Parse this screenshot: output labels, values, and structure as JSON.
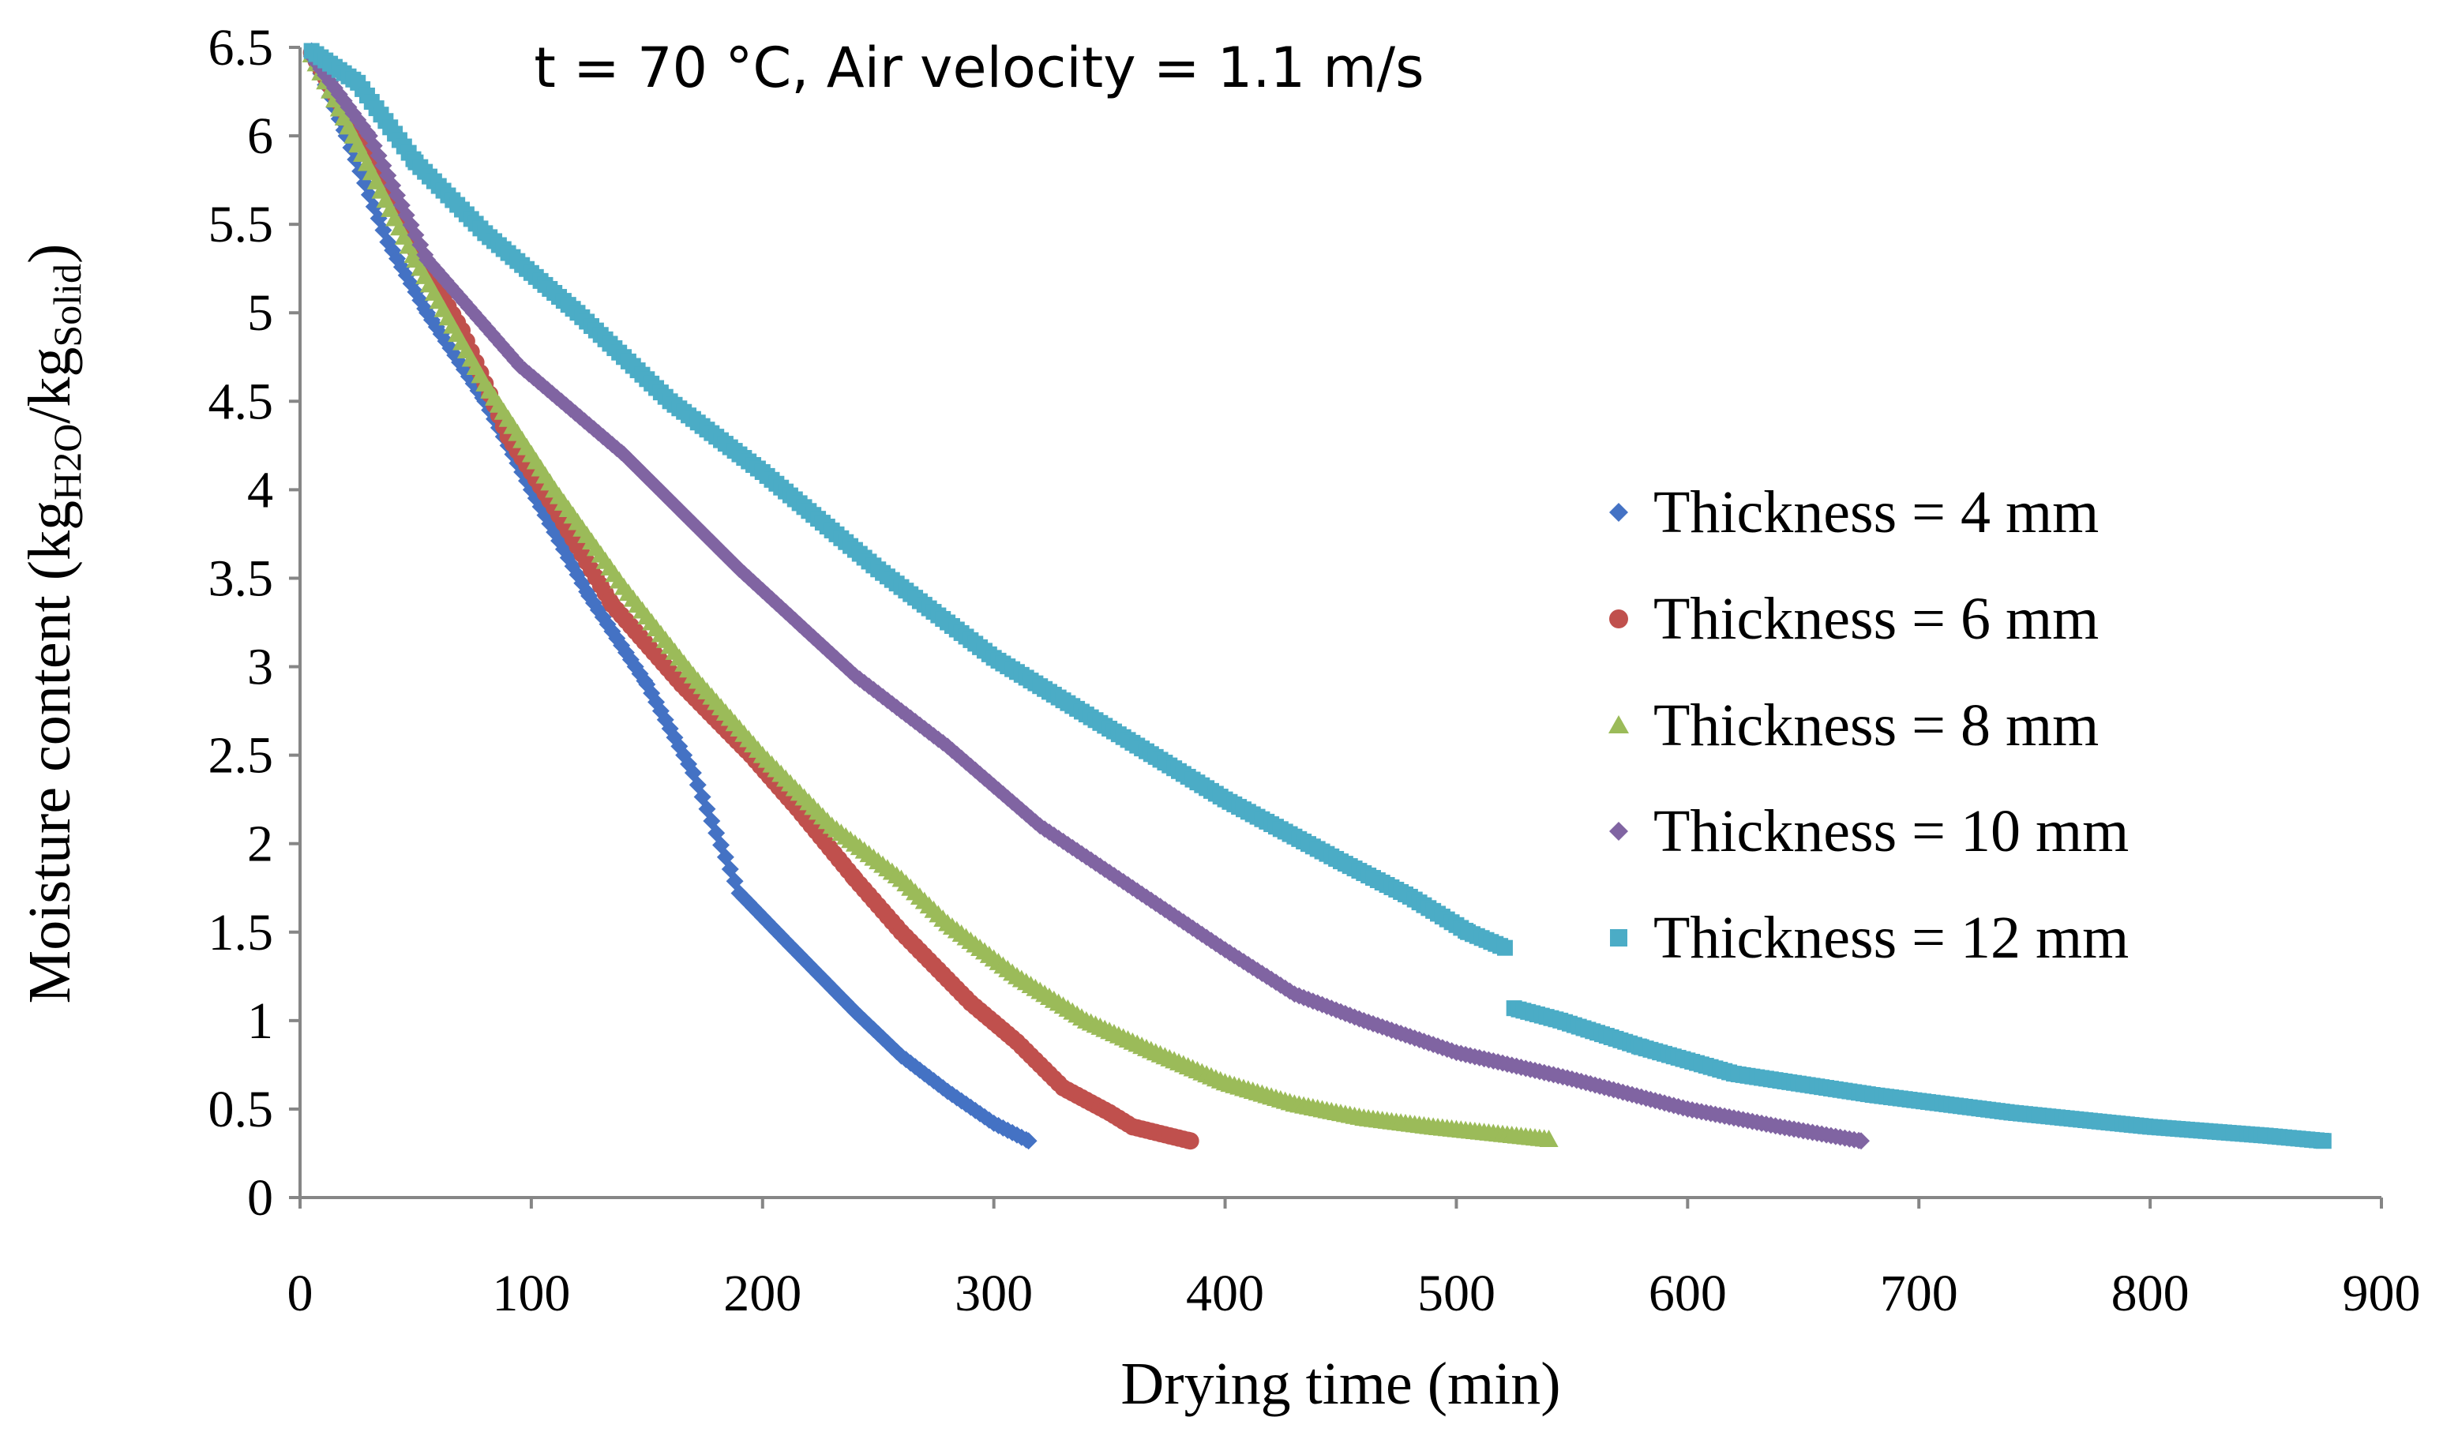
{
  "chart_data": {
    "type": "scatter",
    "title": "t = 70 °C, Air velocity = 1.1 m/s",
    "xlabel": "Drying time (min)",
    "ylabel": {
      "prefix": "Moisture content (kg",
      "sub1": "H2O",
      "mid": "/kg",
      "sub2": "Solid",
      "suffix": ")"
    },
    "xlim": [
      0,
      900
    ],
    "ylim": [
      0,
      6.5
    ],
    "xticks": [
      "0",
      "100",
      "200",
      "300",
      "400",
      "500",
      "600",
      "700",
      "800",
      "900"
    ],
    "yticks": [
      "0",
      "0.5",
      "1",
      "1.5",
      "2",
      "2.5",
      "3",
      "3.5",
      "4",
      "4.5",
      "5",
      "5.5",
      "6",
      "6.5"
    ],
    "grid": false,
    "legend_position": "right",
    "series": [
      {
        "name": "Thickness = 4 mm",
        "color": "#4472C4",
        "marker": "diamond",
        "step": 2,
        "points": [
          [
            5,
            6.48
          ],
          [
            20,
            6.0
          ],
          [
            38,
            5.4
          ],
          [
            55,
            5.0
          ],
          [
            80,
            4.5
          ],
          [
            100,
            4.0
          ],
          [
            125,
            3.4
          ],
          [
            150,
            2.9
          ],
          [
            170,
            2.4
          ],
          [
            190,
            1.72
          ],
          [
            210,
            1.45
          ],
          [
            240,
            1.05
          ],
          [
            260,
            0.8
          ],
          [
            280,
            0.6
          ],
          [
            300,
            0.42
          ],
          [
            315,
            0.32
          ]
        ]
      },
      {
        "name": "Thickness = 6 mm",
        "color": "#C0504D",
        "marker": "circle",
        "step": 2,
        "points": [
          [
            5,
            6.47
          ],
          [
            25,
            6.0
          ],
          [
            50,
            5.35
          ],
          [
            70,
            4.9
          ],
          [
            90,
            4.3
          ],
          [
            110,
            3.9
          ],
          [
            135,
            3.35
          ],
          [
            165,
            2.9
          ],
          [
            195,
            2.5
          ],
          [
            215,
            2.2
          ],
          [
            240,
            1.8
          ],
          [
            260,
            1.5
          ],
          [
            290,
            1.1
          ],
          [
            310,
            0.88
          ],
          [
            330,
            0.62
          ],
          [
            350,
            0.48
          ],
          [
            360,
            0.4
          ],
          [
            385,
            0.32
          ]
        ]
      },
      {
        "name": "Thickness = 8 mm",
        "color": "#9BBB59",
        "marker": "triangle",
        "step": 2,
        "points": [
          [
            5,
            6.46
          ],
          [
            25,
            5.95
          ],
          [
            50,
            5.3
          ],
          [
            80,
            4.6
          ],
          [
            110,
            4.0
          ],
          [
            140,
            3.45
          ],
          [
            170,
            2.95
          ],
          [
            200,
            2.5
          ],
          [
            230,
            2.1
          ],
          [
            260,
            1.8
          ],
          [
            280,
            1.55
          ],
          [
            310,
            1.25
          ],
          [
            340,
            1.0
          ],
          [
            370,
            0.82
          ],
          [
            400,
            0.65
          ],
          [
            430,
            0.53
          ],
          [
            460,
            0.45
          ],
          [
            490,
            0.4
          ],
          [
            540,
            0.33
          ]
        ]
      },
      {
        "name": "Thickness = 10 mm",
        "color": "#8064A2",
        "marker": "diamond",
        "step": 2,
        "points": [
          [
            5,
            6.45
          ],
          [
            30,
            6.0
          ],
          [
            55,
            5.3
          ],
          [
            95,
            4.7
          ],
          [
            140,
            4.2
          ],
          [
            190,
            3.55
          ],
          [
            240,
            2.95
          ],
          [
            280,
            2.55
          ],
          [
            320,
            2.1
          ],
          [
            360,
            1.75
          ],
          [
            400,
            1.4
          ],
          [
            430,
            1.15
          ],
          [
            460,
            1.0
          ],
          [
            500,
            0.82
          ],
          [
            550,
            0.67
          ],
          [
            600,
            0.5
          ],
          [
            640,
            0.4
          ],
          [
            675,
            0.32
          ]
        ]
      },
      {
        "name": "Thickness = 12 mm",
        "color": "#4BACC6",
        "marker": "square",
        "step": 2,
        "points": [
          [
            5,
            6.48
          ],
          [
            25,
            6.3
          ],
          [
            50,
            5.85
          ],
          [
            80,
            5.45
          ],
          [
            120,
            5.0
          ],
          [
            160,
            4.5
          ],
          [
            200,
            4.1
          ],
          [
            250,
            3.55
          ],
          [
            300,
            3.05
          ],
          [
            350,
            2.65
          ],
          [
            400,
            2.25
          ],
          [
            450,
            1.9
          ],
          [
            480,
            1.7
          ],
          [
            505,
            1.5
          ],
          [
            523,
            1.4
          ],
          [
            523,
            null
          ],
          [
            525,
            1.07
          ],
          [
            545,
            1.0
          ],
          [
            580,
            0.85
          ],
          [
            620,
            0.7
          ],
          [
            680,
            0.58
          ],
          [
            740,
            0.48
          ],
          [
            800,
            0.4
          ],
          [
            850,
            0.35
          ],
          [
            875,
            0.32
          ]
        ]
      }
    ]
  }
}
